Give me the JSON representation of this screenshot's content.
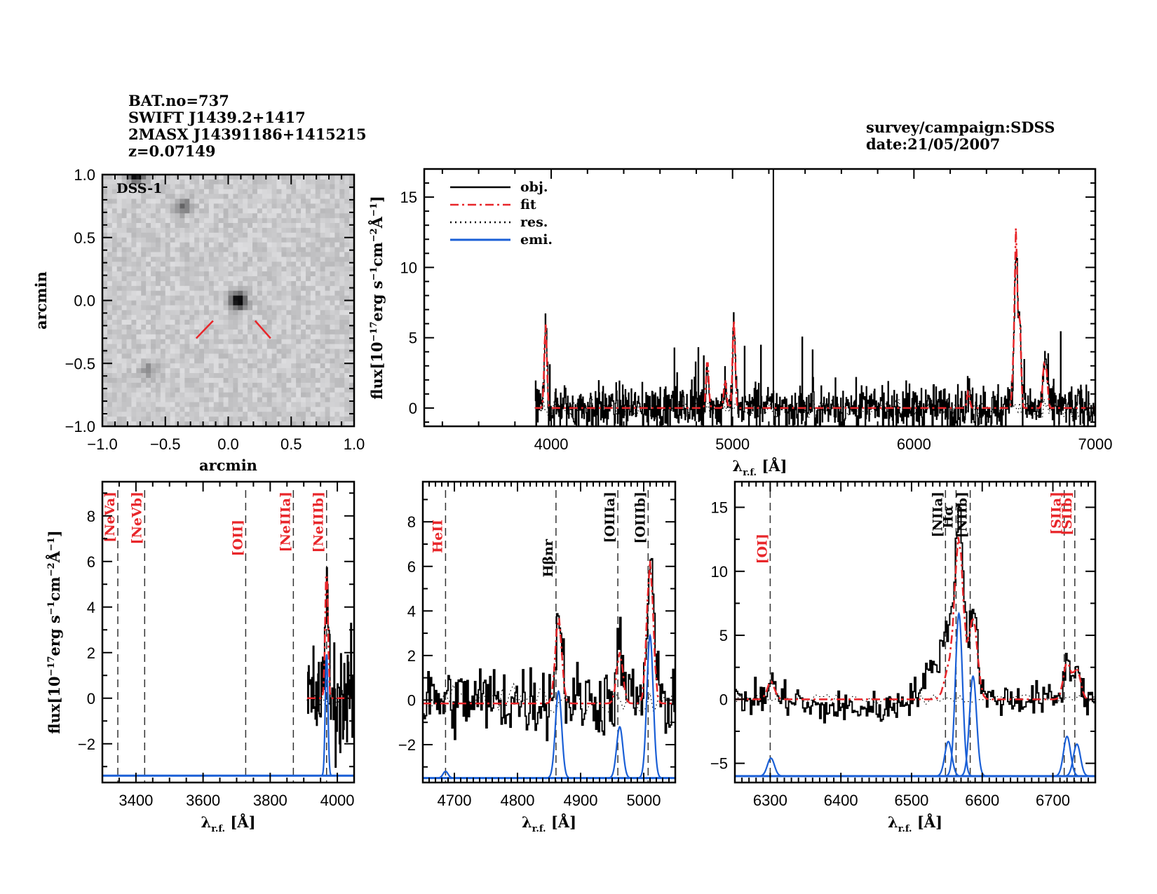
{
  "header": {
    "left_lines": [
      "BAT.no=737",
      "SWIFT J1439.2+1417",
      "2MASX J14391186+1415215",
      "z=0.07149"
    ],
    "right_lines": [
      "survey/campaign:SDSS",
      "date:21/05/2007"
    ]
  },
  "colors": {
    "object": "#000000",
    "fit": "#e8262a",
    "residual": "#000000",
    "emission": "#1a5fd6",
    "line_label_red": "#e8262a",
    "line_label_black": "#000000"
  },
  "chart_data": [
    {
      "id": "image",
      "type": "heatmap",
      "title": "DSS-1",
      "xlabel": "arcmin",
      "ylabel": "arcmin",
      "xlim": [
        -1.0,
        1.0
      ],
      "ylim": [
        -1.0,
        1.0
      ],
      "xticks": [
        "-1.0",
        "-0.5",
        "0.0",
        "0.5",
        "1.0"
      ],
      "yticks": [
        "-1.0",
        "-0.5",
        "0.0",
        "0.5",
        "1.0"
      ],
      "sources": [
        {
          "x": 0.08,
          "y": 0.0,
          "strength": 1.0
        },
        {
          "x": -0.73,
          "y": 1.0,
          "strength": 0.9
        },
        {
          "x": -0.36,
          "y": 0.75,
          "strength": 0.45
        },
        {
          "x": -0.63,
          "y": -0.55,
          "strength": 0.25
        }
      ],
      "marker": {
        "x": 0.08,
        "y": 0.0,
        "color": "#e8262a"
      }
    },
    {
      "id": "full-spectrum",
      "type": "line",
      "xlabel": "λr.f. [Å]",
      "ylabel": "flux[10^-17 erg s^-1 cm^-2 Å^-1]",
      "xlim": [
        3300,
        7000
      ],
      "ylim": [
        -1.3,
        17
      ],
      "xticks": [
        "4000",
        "5000",
        "6000",
        "7000"
      ],
      "yticks": [
        "0",
        "5",
        "10",
        "15"
      ],
      "legend": {
        "position": "top-left",
        "entries": [
          "obj.",
          "fit",
          "res.",
          "emi."
        ]
      },
      "data_range": [
        3910,
        7000
      ],
      "spike": {
        "x": 5225,
        "y": 17
      },
      "peaks": [
        {
          "x": 3969,
          "height": 6.0
        },
        {
          "x": 4861,
          "height": 3.5
        },
        {
          "x": 4959,
          "height": 2.0
        },
        {
          "x": 5007,
          "height": 6.3
        },
        {
          "x": 6300,
          "height": 1.2
        },
        {
          "x": 6548,
          "height": 2.6
        },
        {
          "x": 6563,
          "height": 12.5
        },
        {
          "x": 6583,
          "height": 6.5
        },
        {
          "x": 6716,
          "height": 2.8
        },
        {
          "x": 6731,
          "height": 2.5
        }
      ]
    },
    {
      "id": "zoom-neon",
      "type": "line",
      "xlabel": "λr.f. [Å]",
      "ylabel": "flux[10^-17 erg s^-1 cm^-2 Å^-1]",
      "xlim": [
        3300,
        4050
      ],
      "ylim": [
        -3.7,
        9.5
      ],
      "xticks": [
        "3400",
        "3600",
        "3800",
        "4000"
      ],
      "yticks": [
        "-2",
        "0",
        "2",
        "4",
        "6",
        "8"
      ],
      "data_range": [
        3910,
        4050
      ],
      "emission_baseline": -3.4,
      "lines": [
        {
          "label": "[NeVa]",
          "x": 3346,
          "color": "red"
        },
        {
          "label": "[NeVb]",
          "x": 3426,
          "color": "red"
        },
        {
          "label": "[OII]",
          "x": 3727,
          "color": "red"
        },
        {
          "label": "[NeIIIa]",
          "x": 3869,
          "color": "red"
        },
        {
          "label": "[NeIIIb]",
          "x": 3968,
          "color": "red"
        }
      ],
      "components": [
        {
          "x": 3968,
          "amp": 5.3,
          "sigma": 4
        }
      ],
      "fit_peaks": [
        {
          "x": 3968,
          "height": 6.0,
          "sigma": 4
        }
      ]
    },
    {
      "id": "zoom-hbeta",
      "type": "line",
      "xlabel": "λr.f. [Å]",
      "ylabel": "",
      "xlim": [
        4650,
        5050
      ],
      "ylim": [
        -3.7,
        9.8
      ],
      "xticks": [
        "4700",
        "4800",
        "4900",
        "5000"
      ],
      "yticks": [
        "-2",
        "0",
        "2",
        "4",
        "6",
        "8"
      ],
      "data_range": [
        4650,
        5050
      ],
      "emission_baseline": -3.5,
      "lines": [
        {
          "label": "HeII",
          "x": 4686,
          "color": "red"
        },
        {
          "label": "Hβnr",
          "x": 4861,
          "color": "black"
        },
        {
          "label": "[OIIIa]",
          "x": 4959,
          "color": "black"
        },
        {
          "label": "[OIIIb]",
          "x": 5007,
          "color": "black"
        }
      ],
      "components": [
        {
          "x": 4686,
          "amp": 0.3,
          "sigma": 4
        },
        {
          "x": 4865,
          "amp": 3.9,
          "sigma": 5
        },
        {
          "x": 4962,
          "amp": 2.3,
          "sigma": 5
        },
        {
          "x": 5010,
          "amp": 6.4,
          "sigma": 5
        }
      ],
      "fit_peaks": [
        {
          "x": 4865,
          "height": 3.9,
          "sigma": 5
        },
        {
          "x": 4962,
          "height": 2.3,
          "sigma": 5
        },
        {
          "x": 5010,
          "height": 6.4,
          "sigma": 5
        }
      ]
    },
    {
      "id": "zoom-halpha",
      "type": "line",
      "xlabel": "λr.f. [Å]",
      "ylabel": "",
      "xlim": [
        6250,
        6760
      ],
      "ylim": [
        -6.5,
        17
      ],
      "xticks": [
        "6300",
        "6400",
        "6500",
        "6600",
        "6700"
      ],
      "yticks": [
        "-5",
        "0",
        "5",
        "10",
        "15"
      ],
      "data_range": [
        6250,
        6760
      ],
      "emission_baseline": -6.0,
      "lines": [
        {
          "label": "[OI]",
          "x": 6300,
          "color": "red"
        },
        {
          "label": "[NIIa]",
          "x": 6548,
          "color": "black"
        },
        {
          "label": "Hα",
          "x": 6563,
          "color": "black"
        },
        {
          "label": "[NIIb]",
          "x": 6583,
          "color": "black"
        },
        {
          "label": "[SIIa]",
          "x": 6716,
          "color": "red"
        },
        {
          "label": "[SIIb]",
          "x": 6731,
          "color": "red"
        }
      ],
      "components": [
        {
          "x": 6301,
          "amp": 1.4,
          "sigma": 5
        },
        {
          "x": 6552,
          "amp": 2.7,
          "sigma": 5
        },
        {
          "x": 6567,
          "amp": 12.7,
          "sigma": 5
        },
        {
          "x": 6587,
          "amp": 7.8,
          "sigma": 5
        },
        {
          "x": 6720,
          "amp": 3.1,
          "sigma": 5
        },
        {
          "x": 6734,
          "amp": 2.5,
          "sigma": 5
        }
      ],
      "fit_peaks": [
        {
          "x": 6301,
          "height": 1.4,
          "sigma": 5
        },
        {
          "x": 6552,
          "height": 2.2,
          "sigma": 6
        },
        {
          "x": 6567,
          "height": 12.7,
          "sigma": 6
        },
        {
          "x": 6587,
          "height": 6.4,
          "sigma": 6
        },
        {
          "x": 6720,
          "height": 2.9,
          "sigma": 5
        },
        {
          "x": 6734,
          "height": 2.4,
          "sigma": 5
        }
      ]
    }
  ]
}
